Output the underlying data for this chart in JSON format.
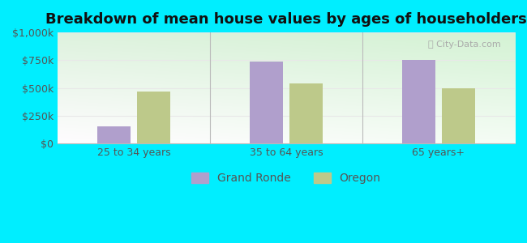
{
  "title": "Breakdown of mean house values by ages of householders",
  "categories": [
    "25 to 34 years",
    "35 to 64 years",
    "65 years+"
  ],
  "grand_ronde": [
    150000,
    737000,
    750000
  ],
  "oregon": [
    470000,
    540000,
    497000
  ],
  "grand_ronde_color": "#b09fcc",
  "oregon_color": "#bdc98a",
  "background_color": "#00eeff",
  "ylim": [
    0,
    1000000
  ],
  "yticks": [
    0,
    250000,
    500000,
    750000,
    1000000
  ],
  "ytick_labels": [
    "$0",
    "$250k",
    "$500k",
    "$750k",
    "$1,000k"
  ],
  "bar_width": 0.22,
  "title_fontsize": 13,
  "tick_fontsize": 9,
  "legend_fontsize": 10,
  "grid_color": "#e8e8e8",
  "separator_color": "#bbbbbb",
  "text_color": "#555555"
}
